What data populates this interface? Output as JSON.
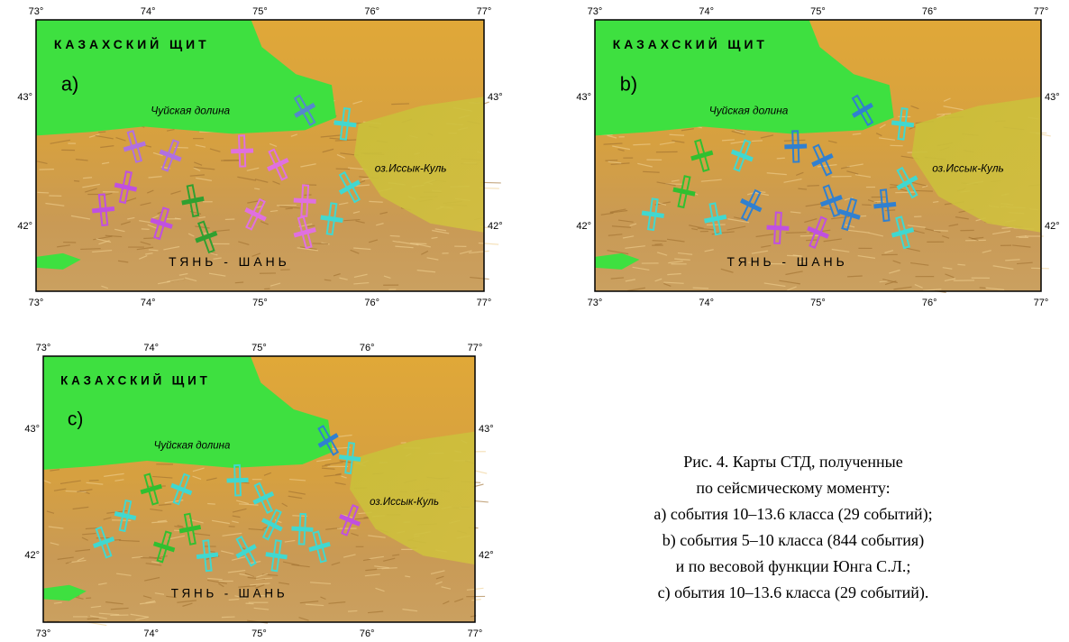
{
  "maps": [
    {
      "label": "a)",
      "lon_labels": [
        "73°",
        "74°",
        "75°",
        "76°",
        "77°"
      ],
      "lat_labels": [
        "43°",
        "42°"
      ],
      "shield": "КАЗАХСКИЙ ЩИТ",
      "valley": "Чуйская долина",
      "lake": "оз.Иссык-Куль",
      "range": "ТЯНЬ - ШАНЬ"
    },
    {
      "label": "b)",
      "lon_labels": [
        "73°",
        "74°",
        "75°",
        "76°",
        "77°"
      ],
      "lat_labels": [
        "43°",
        "42°"
      ],
      "shield": "КАЗАХСКИЙ ЩИТ",
      "valley": "Чуйская долина",
      "lake": "оз.Иссык-Куль",
      "range": "ТЯНЬ - ШАНЬ"
    },
    {
      "label": "c)",
      "lon_labels": [
        "73°",
        "74°",
        "75°",
        "76°",
        "77°"
      ],
      "lat_labels": [
        "43°",
        "42°"
      ],
      "shield": "КАЗАХСКИЙ ЩИТ",
      "valley": "Чуйская долина",
      "lake": "оз.Иссык-Куль",
      "range": "ТЯНЬ - ШАНЬ"
    }
  ],
  "caption": [
    "Рис. 4. Карты СТД, полученные",
    "по сейсмическому моменту:",
    "а) события 10–13.6 класса (29 событий);",
    "b) события 5–10 класса (844 события)",
    "и по весовой функции Юнга С.Л.;",
    "с) обытия 10–13.6 класса (29 событий)."
  ]
}
